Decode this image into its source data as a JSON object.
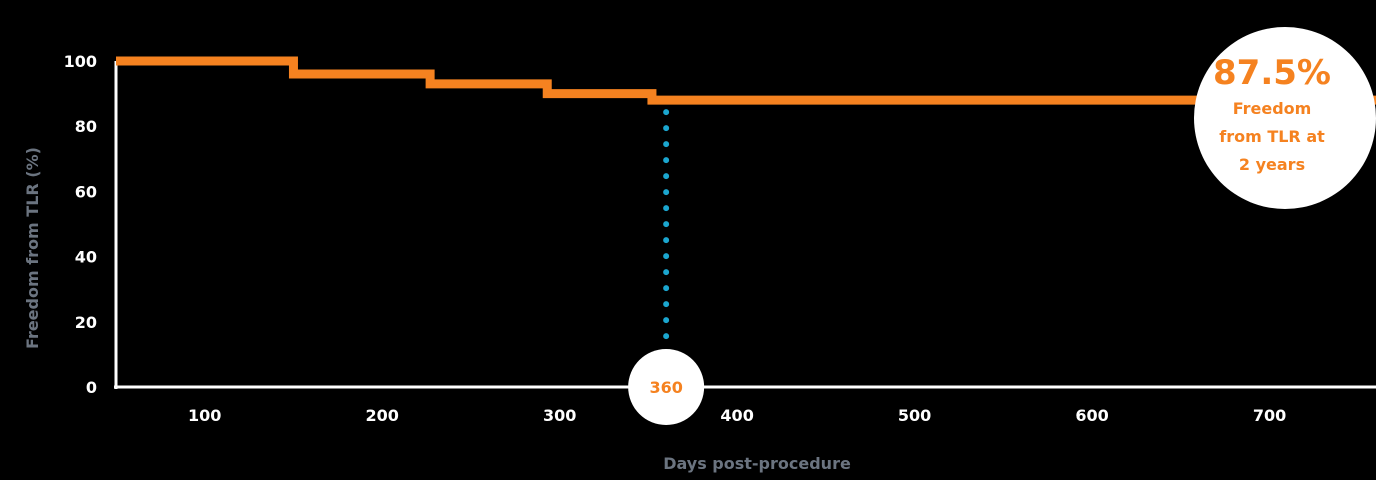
{
  "chart_data": {
    "type": "line",
    "xlabel": "Days post-procedure",
    "ylabel": "Freedom from TLR (%)",
    "xlim": [
      50,
      760
    ],
    "ylim": [
      0,
      100
    ],
    "x_ticks": [
      100,
      200,
      300,
      400,
      500,
      600,
      700
    ],
    "y_ticks": [
      0,
      20,
      40,
      60,
      80,
      100
    ],
    "step": true,
    "series": [
      {
        "x": [
          50,
          150,
          150,
          227,
          227,
          293,
          293,
          352,
          352,
          760
        ],
        "y": [
          100,
          100,
          96,
          96,
          93,
          93,
          90,
          90,
          88,
          88
        ]
      }
    ],
    "marker": {
      "x": 360,
      "label": "360"
    },
    "callout": {
      "value": "87.5%",
      "lines": [
        "Freedom",
        "from TLR at",
        "2 years"
      ]
    },
    "grid": false,
    "colors": {
      "line": "#f58220",
      "marker_line": "#1ba6cf",
      "axis": "#ffffff",
      "axis_title": "#6b7480",
      "background": "#000000"
    }
  }
}
